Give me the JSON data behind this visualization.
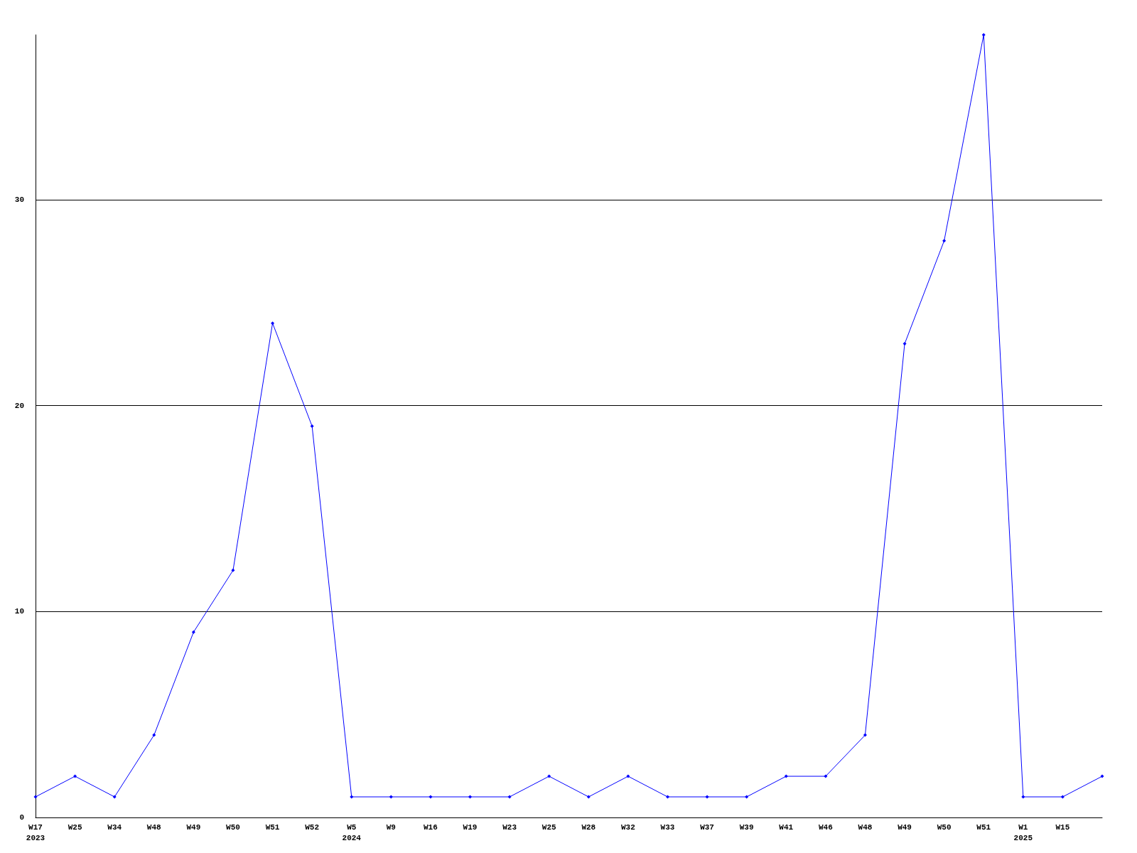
{
  "chart_data": {
    "type": "line",
    "categories": [
      "W17\n2023",
      "W25",
      "W34",
      "W48",
      "W49",
      "W50",
      "W51",
      "W52",
      "W5\n2024",
      "W9",
      "W16",
      "W19",
      "W23",
      "W25",
      "W28",
      "W32",
      "W33",
      "W37",
      "W39",
      "W41",
      "W46",
      "W48",
      "W49",
      "W50",
      "W51",
      "W1\n2025",
      "W15",
      null
    ],
    "series": [
      {
        "color": "#0000ff",
        "values": [
          1,
          2,
          1,
          4,
          9,
          12,
          24,
          19,
          1,
          1,
          1,
          1,
          1,
          2,
          1,
          2,
          1,
          1,
          1,
          2,
          2,
          4,
          23,
          28,
          38,
          1,
          1,
          2
        ]
      }
    ],
    "ylim": [
      0,
      38
    ],
    "yticks": [
      0,
      10,
      20,
      30
    ],
    "grid": "y",
    "marker": "diamond",
    "line_style": "solid"
  }
}
